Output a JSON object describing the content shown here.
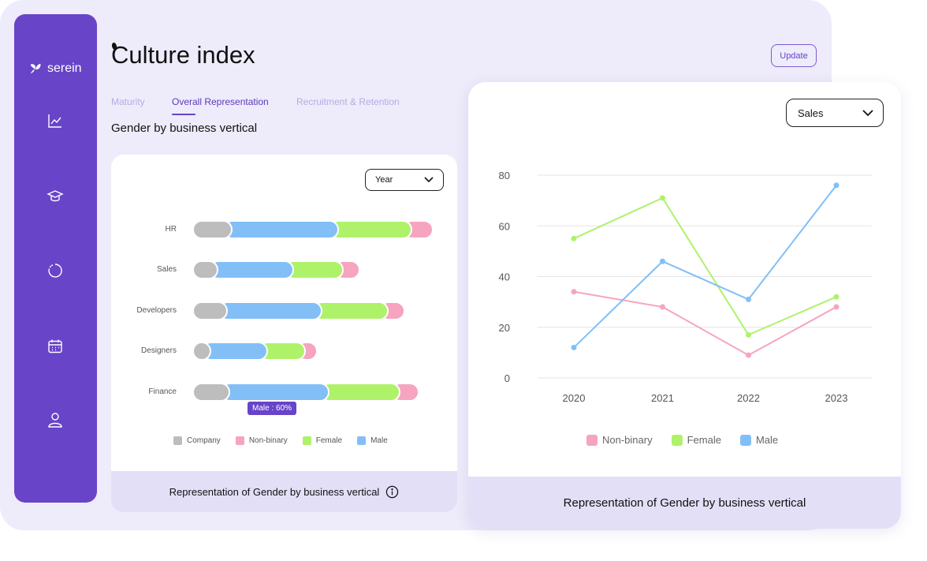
{
  "brand": {
    "name": "serein"
  },
  "nav": [
    "trend-chart-icon",
    "graduation-cap-icon",
    "progress-ring-icon",
    "calendar-icon",
    "user-icon"
  ],
  "header": {
    "title": "Culture index",
    "update_label": "Update"
  },
  "tabs": [
    {
      "label": "Maturity",
      "active": false
    },
    {
      "label": "Overall Representation",
      "active": true
    },
    {
      "label": "Recruitment & Retention",
      "active": false
    }
  ],
  "section_title": "Gender by business vertical",
  "colors": {
    "Company": "#bdbdbd",
    "Non-binary": "#f6a4bf",
    "Female": "#aef26a",
    "Male": "#82bff7",
    "accent": "#6844c8"
  },
  "bar_card": {
    "filter": "Year",
    "legend": [
      "Company",
      "Non-binary",
      "Female",
      "Male"
    ],
    "tooltip": "Male : 60%",
    "footer": "Representation of Gender by business vertical",
    "chart_data": {
      "type": "bar",
      "orientation": "horizontal",
      "stacked": true,
      "categories": [
        "HR",
        "Sales",
        "Developers",
        "Designers",
        "Finance"
      ],
      "series": [
        {
          "name": "Company",
          "values": [
            17,
            11,
            15,
            8,
            16
          ]
        },
        {
          "name": "Male",
          "values": [
            45,
            32,
            40,
            24,
            42
          ]
        },
        {
          "name": "Female",
          "values": [
            31,
            21,
            28,
            16,
            30
          ]
        },
        {
          "name": "Non-binary",
          "values": [
            9,
            7,
            7,
            5,
            8
          ]
        }
      ]
    }
  },
  "line_card": {
    "filter": "Sales",
    "footer": "Representation of Gender by business vertical",
    "chart_data": {
      "type": "line",
      "x": [
        "2020",
        "2021",
        "2022",
        "2023"
      ],
      "ylim": [
        0,
        80
      ],
      "yticks": [
        0,
        20,
        40,
        60,
        80
      ],
      "grid": true,
      "legend": "bottom",
      "series": [
        {
          "name": "Non-binary",
          "values": [
            34,
            28,
            9,
            28
          ]
        },
        {
          "name": "Female",
          "values": [
            55,
            71,
            17,
            32
          ]
        },
        {
          "name": "Male",
          "values": [
            12,
            46,
            31,
            76
          ]
        }
      ]
    }
  }
}
